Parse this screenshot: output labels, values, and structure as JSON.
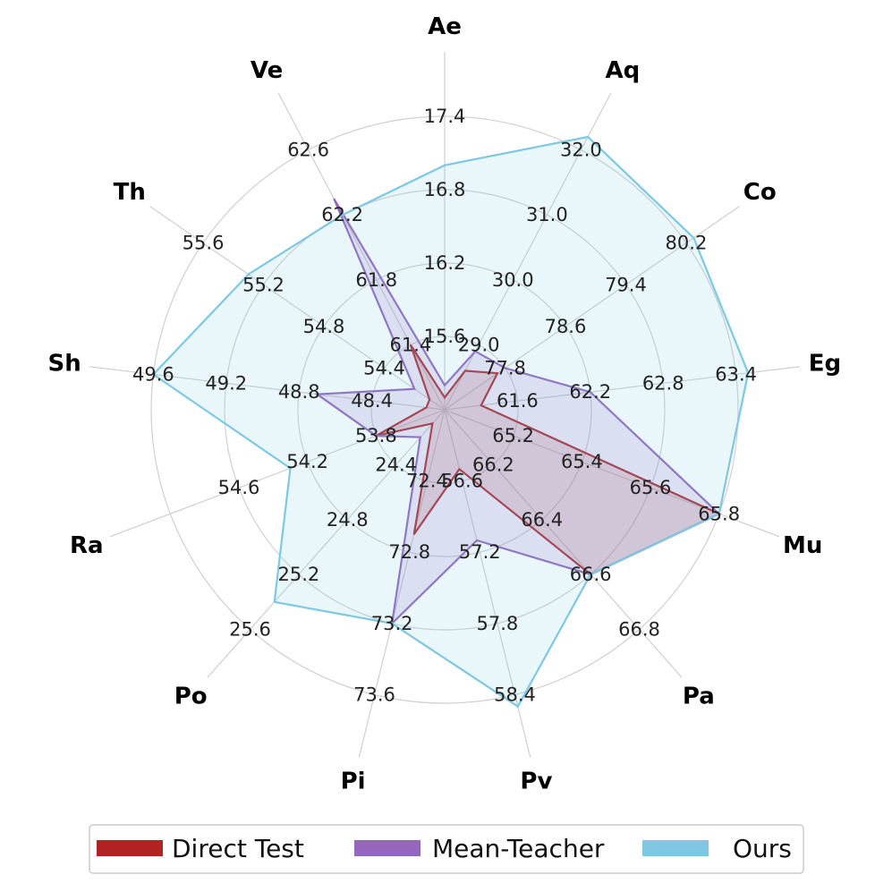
{
  "chart_data": {
    "type": "radar",
    "axes": [
      {
        "name": "Ae",
        "ticks": [
          "15.6",
          "16.2",
          "16.8",
          "17.4"
        ]
      },
      {
        "name": "Aq",
        "ticks": [
          "29.0",
          "30.0",
          "31.0",
          "32.0"
        ]
      },
      {
        "name": "Co",
        "ticks": [
          "77.8",
          "78.6",
          "79.4",
          "80.2"
        ]
      },
      {
        "name": "Eg",
        "ticks": [
          "61.6",
          "62.2",
          "62.8",
          "63.4"
        ]
      },
      {
        "name": "Mu",
        "ticks": [
          "65.2",
          "65.4",
          "65.6",
          "65.8"
        ]
      },
      {
        "name": "Pa",
        "ticks": [
          "66.2",
          "66.4",
          "66.6",
          "66.8"
        ]
      },
      {
        "name": "Pv",
        "ticks": [
          "56.6",
          "57.2",
          "57.8",
          "58.4"
        ]
      },
      {
        "name": "Pi",
        "ticks": [
          "72.4",
          "72.8",
          "73.2",
          "73.6"
        ]
      },
      {
        "name": "Po",
        "ticks": [
          "24.4",
          "24.8",
          "25.2",
          "25.6"
        ]
      },
      {
        "name": "Ra",
        "ticks": [
          "53.8",
          "54.2",
          "54.6"
        ]
      },
      {
        "name": "Sh",
        "ticks": [
          "48.4",
          "48.8",
          "49.2",
          "49.6"
        ]
      },
      {
        "name": "Th",
        "ticks": [
          "54.4",
          "54.8",
          "55.2",
          "55.6"
        ]
      },
      {
        "name": "Ve",
        "ticks": [
          "61.4",
          "61.8",
          "62.2",
          "62.6"
        ]
      }
    ],
    "series": [
      {
        "name": "Direct Test",
        "color": "#b22222",
        "values": [
          15.1,
          28.6,
          77.7,
          61.3,
          65.8,
          66.6,
          56.5,
          72.7,
          24.1,
          53.8,
          48.1,
          54.1,
          61.4
        ]
      },
      {
        "name": "Mean-Teacher",
        "color": "#9467bd",
        "values": [
          15.2,
          28.9,
          77.8,
          62.2,
          65.8,
          66.6,
          57.1,
          73.2,
          24.2,
          53.8,
          48.7,
          54.2,
          62.3
        ]
      },
      {
        "name": "Ours",
        "color": "#7ec8e3",
        "values": [
          17.0,
          32.2,
          80.3,
          63.5,
          65.8,
          66.6,
          58.5,
          73.2,
          25.4,
          54.3,
          49.6,
          55.3,
          62.2
        ]
      }
    ]
  }
}
